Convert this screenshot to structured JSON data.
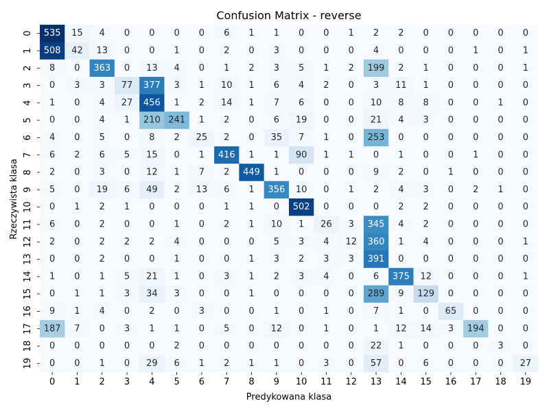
{
  "chart_data": {
    "type": "heatmap",
    "title": "Confusion Matrix - reverse",
    "xlabel": "Predykowana klasa",
    "ylabel": "Rzeczywista klasa",
    "x_categories": [
      "0",
      "1",
      "2",
      "3",
      "4",
      "5",
      "6",
      "7",
      "8",
      "9",
      "10",
      "11",
      "12",
      "13",
      "14",
      "15",
      "16",
      "17",
      "18",
      "19"
    ],
    "y_categories": [
      "0",
      "1",
      "2",
      "3",
      "4",
      "5",
      "6",
      "7",
      "8",
      "9",
      "10",
      "11",
      "12",
      "13",
      "14",
      "15",
      "16",
      "17",
      "18",
      "19"
    ],
    "colormap": "Blues",
    "color_range": [
      0,
      535
    ],
    "colorbar": false,
    "grid": false,
    "values": [
      [
        535,
        15,
        4,
        0,
        0,
        0,
        0,
        6,
        1,
        1,
        0,
        0,
        1,
        2,
        2,
        0,
        0,
        0,
        0,
        0
      ],
      [
        508,
        42,
        13,
        0,
        0,
        1,
        0,
        2,
        0,
        3,
        0,
        0,
        0,
        4,
        0,
        0,
        0,
        1,
        0,
        1
      ],
      [
        8,
        0,
        363,
        0,
        13,
        4,
        0,
        1,
        2,
        3,
        5,
        1,
        2,
        199,
        2,
        1,
        0,
        0,
        0,
        1
      ],
      [
        0,
        3,
        3,
        77,
        377,
        3,
        1,
        10,
        1,
        6,
        4,
        2,
        0,
        3,
        11,
        1,
        0,
        0,
        0,
        0
      ],
      [
        1,
        0,
        4,
        27,
        456,
        1,
        2,
        14,
        1,
        7,
        6,
        0,
        0,
        10,
        8,
        8,
        0,
        0,
        1,
        0
      ],
      [
        0,
        0,
        4,
        1,
        210,
        241,
        1,
        2,
        0,
        6,
        19,
        0,
        0,
        21,
        4,
        3,
        0,
        0,
        0,
        0
      ],
      [
        4,
        0,
        5,
        0,
        8,
        2,
        25,
        2,
        0,
        35,
        7,
        1,
        0,
        253,
        0,
        0,
        0,
        0,
        0,
        0
      ],
      [
        6,
        2,
        6,
        5,
        15,
        0,
        1,
        416,
        1,
        1,
        90,
        1,
        1,
        0,
        1,
        0,
        0,
        1,
        0,
        0
      ],
      [
        2,
        0,
        3,
        0,
        12,
        1,
        7,
        2,
        449,
        1,
        0,
        0,
        0,
        9,
        2,
        0,
        1,
        0,
        0,
        0
      ],
      [
        5,
        0,
        19,
        6,
        49,
        2,
        13,
        6,
        1,
        356,
        10,
        0,
        1,
        2,
        4,
        3,
        0,
        2,
        1,
        0
      ],
      [
        0,
        1,
        2,
        1,
        0,
        0,
        0,
        1,
        1,
        0,
        502,
        0,
        0,
        0,
        2,
        2,
        0,
        0,
        0,
        0
      ],
      [
        6,
        0,
        2,
        0,
        0,
        1,
        0,
        2,
        1,
        10,
        1,
        26,
        3,
        345,
        4,
        2,
        0,
        0,
        0,
        0
      ],
      [
        2,
        0,
        2,
        2,
        2,
        4,
        0,
        0,
        0,
        5,
        3,
        4,
        12,
        360,
        1,
        4,
        0,
        0,
        0,
        1
      ],
      [
        0,
        0,
        2,
        0,
        0,
        1,
        0,
        0,
        1,
        3,
        2,
        3,
        3,
        391,
        0,
        0,
        0,
        0,
        0,
        0
      ],
      [
        1,
        0,
        1,
        5,
        21,
        1,
        0,
        3,
        1,
        2,
        3,
        4,
        0,
        6,
        375,
        12,
        0,
        0,
        0,
        1
      ],
      [
        0,
        1,
        1,
        3,
        34,
        3,
        0,
        0,
        1,
        0,
        0,
        0,
        0,
        289,
        9,
        129,
        0,
        0,
        0,
        0
      ],
      [
        9,
        1,
        4,
        0,
        2,
        0,
        3,
        0,
        0,
        1,
        0,
        1,
        0,
        7,
        1,
        0,
        65,
        0,
        0,
        0
      ],
      [
        187,
        7,
        0,
        3,
        1,
        1,
        0,
        5,
        0,
        12,
        0,
        1,
        0,
        1,
        12,
        14,
        3,
        194,
        0,
        0
      ],
      [
        0,
        0,
        0,
        0,
        0,
        2,
        0,
        0,
        0,
        0,
        0,
        0,
        0,
        22,
        1,
        0,
        0,
        0,
        3,
        0
      ],
      [
        0,
        0,
        1,
        0,
        29,
        6,
        1,
        2,
        1,
        1,
        0,
        3,
        0,
        57,
        0,
        6,
        0,
        0,
        0,
        27
      ]
    ]
  }
}
